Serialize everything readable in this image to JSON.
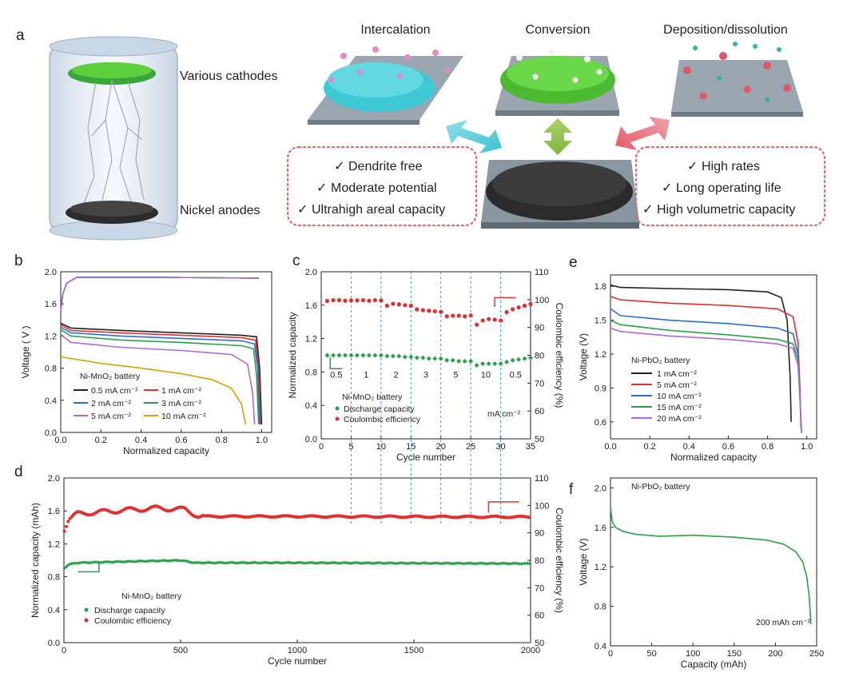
{
  "figure": {
    "panel_a": {
      "letter": "a",
      "cathode_label": "Various cathodes",
      "anode_label": "Nickel anodes",
      "mechanisms": [
        "Intercalation",
        "Conversion",
        "Deposition/dissolution"
      ],
      "left_box": [
        "Dendrite free",
        "Moderate potential",
        "Ultrahigh areal capacity"
      ],
      "right_box": [
        "High rates",
        "Long operating life",
        "High volumetric capacity"
      ],
      "check": "✓",
      "colors": {
        "intercalation": "#3ec8d4",
        "conversion": "#5ccf3c",
        "deposition": "#e0566a",
        "anode": "#2b2b2b",
        "box_border": "#e06a6a"
      }
    },
    "panel_b": {
      "letter": "b"
    },
    "panel_c": {
      "letter": "c"
    },
    "panel_d": {
      "letter": "d"
    },
    "panel_e": {
      "letter": "e"
    },
    "panel_f": {
      "letter": "f"
    }
  },
  "chart_data": [
    {
      "id": "b",
      "type": "line",
      "xlabel": "Normalized capacity",
      "ylabel": "Voltage ( V )",
      "xlim": [
        0,
        1.05
      ],
      "ylim": [
        0,
        2.0
      ],
      "xticks": [
        "0.0",
        "0.2",
        "0.4",
        "0.6",
        "0.8",
        "1.0"
      ],
      "yticks": [
        "0.0",
        "0.4",
        "0.8",
        "1.2",
        "1.6",
        "2.0"
      ],
      "annotation": "Ni-MnO₂ battery",
      "legend": [
        {
          "name": "0.5 mA cm⁻²",
          "color": "#222222"
        },
        {
          "name": "1 mA cm⁻²",
          "color": "#e03030"
        },
        {
          "name": "2 mA cm⁻²",
          "color": "#2a6fd0"
        },
        {
          "name": "3 mA cm⁻²",
          "color": "#2aa04a"
        },
        {
          "name": "5 mA cm⁻²",
          "color": "#b068d8"
        },
        {
          "name": "10 mA cm⁻²",
          "color": "#d8a000"
        }
      ],
      "series": [
        {
          "color": "#222222",
          "charge_v": 1.93,
          "discharge": {
            "x": [
              0,
              0.05,
              0.3,
              0.6,
              0.9,
              0.975,
              0.99,
              1.0
            ],
            "y": [
              1.36,
              1.3,
              1.27,
              1.24,
              1.21,
              1.19,
              0.8,
              0.1
            ]
          }
        },
        {
          "color": "#e03030",
          "charge_v": 1.93,
          "discharge": {
            "x": [
              0,
              0.05,
              0.3,
              0.6,
              0.9,
              0.97,
              0.985,
              0.995
            ],
            "y": [
              1.34,
              1.27,
              1.24,
              1.21,
              1.18,
              1.15,
              0.8,
              0.1
            ]
          }
        },
        {
          "color": "#2a6fd0",
          "charge_v": 1.93,
          "discharge": {
            "x": [
              0,
              0.05,
              0.3,
              0.6,
              0.9,
              0.965,
              0.98,
              0.99
            ],
            "y": [
              1.31,
              1.24,
              1.2,
              1.17,
              1.14,
              1.1,
              0.8,
              0.1
            ]
          }
        },
        {
          "color": "#2aa04a",
          "charge_v": 1.93,
          "discharge": {
            "x": [
              0,
              0.05,
              0.3,
              0.6,
              0.9,
              0.96,
              0.975,
              0.985
            ],
            "y": [
              1.28,
              1.2,
              1.15,
              1.12,
              1.08,
              1.04,
              0.7,
              0.1
            ]
          }
        },
        {
          "color": "#b068d8",
          "charge_v": 1.93,
          "discharge": {
            "x": [
              0,
              0.05,
              0.3,
              0.6,
              0.85,
              0.93,
              0.955,
              0.965
            ],
            "y": [
              1.22,
              1.12,
              1.06,
              1.02,
              0.97,
              0.85,
              0.5,
              0.1
            ]
          }
        },
        {
          "color": "#d8a000",
          "charge_v": null,
          "discharge": {
            "x": [
              0,
              0.2,
              0.4,
              0.6,
              0.75,
              0.85,
              0.9,
              0.92
            ],
            "y": [
              0.94,
              0.86,
              0.8,
              0.73,
              0.66,
              0.55,
              0.35,
              0.1
            ]
          }
        }
      ]
    },
    {
      "id": "c",
      "type": "scatter",
      "xlabel": "Cycle number",
      "ylabel": "Normalized capacity",
      "y2label": "Coulombic efficiency (%)",
      "xlim": [
        0,
        35
      ],
      "ylim": [
        0,
        2.0
      ],
      "y2lim": [
        50,
        110
      ],
      "xticks": [
        "0",
        "5",
        "10",
        "15",
        "20",
        "25",
        "30",
        "35"
      ],
      "yticks": [
        "0.0",
        "0.4",
        "0.8",
        "1.2",
        "1.6",
        "2.0"
      ],
      "y2ticks": [
        "50",
        "60",
        "70",
        "80",
        "90",
        "100",
        "110"
      ],
      "rate_labels": [
        "0.5",
        "1",
        "2",
        "3",
        "5",
        "10",
        "0.5"
      ],
      "unit_label": "mA cm⁻²",
      "annotation": "Ni-MnO₂ battery",
      "legend": [
        {
          "name": "Discharge capacity",
          "color": "#2aa04a"
        },
        {
          "name": "Coulombic efficiency",
          "color": "#e03030"
        }
      ],
      "boundaries": [
        5,
        10,
        15,
        20,
        25,
        30
      ],
      "discharge": [
        1.0,
        1.0,
        1.0,
        1.0,
        1.0,
        1.0,
        1.0,
        1.0,
        1.0,
        1.0,
        0.99,
        0.99,
        0.99,
        0.98,
        0.98,
        0.97,
        0.97,
        0.96,
        0.96,
        0.96,
        0.94,
        0.94,
        0.93,
        0.93,
        0.93,
        0.88,
        0.9,
        0.9,
        0.9,
        0.9,
        0.92,
        0.94,
        0.95,
        0.96,
        0.97
      ],
      "efficiency": [
        99.5,
        99.8,
        99.8,
        99.6,
        99.7,
        99.7,
        99.8,
        99.6,
        99.8,
        99.7,
        97.8,
        98.5,
        98.3,
        98.0,
        97.8,
        96.5,
        96.2,
        96.0,
        95.8,
        95.6,
        94.0,
        94.2,
        94.2,
        94.0,
        94.3,
        91.0,
        92.5,
        93.0,
        92.8,
        92.5,
        95.5,
        96.5,
        97.2,
        97.8,
        98.4
      ]
    },
    {
      "id": "d",
      "type": "scatter",
      "xlabel": "Cycle number",
      "ylabel": "Normalized capacity (mAh)",
      "y2label": "Coulombic efficiency (%)",
      "xlim": [
        0,
        2000
      ],
      "ylim": [
        0,
        2.0
      ],
      "y2lim": [
        50,
        110
      ],
      "xticks": [
        "0",
        "500",
        "1000",
        "1500",
        "2000"
      ],
      "yticks": [
        "0.0",
        "0.4",
        "0.8",
        "1.2",
        "1.6",
        "2.0"
      ],
      "y2ticks": [
        "50",
        "60",
        "70",
        "80",
        "90",
        "100",
        "110"
      ],
      "annotation": "Ni-MnO₂ battery",
      "legend": [
        {
          "name": "Discharge capacity",
          "color": "#2aa04a"
        },
        {
          "name": "Coulombic efficiency",
          "color": "#e03030"
        }
      ],
      "discharge_profile": {
        "x": [
          0,
          20,
          60,
          200,
          500,
          560,
          1000,
          2000
        ],
        "y": [
          0.9,
          0.95,
          0.97,
          0.98,
          1.0,
          0.97,
          0.97,
          0.96
        ]
      },
      "efficiency_profile": {
        "x": [
          0,
          20,
          60,
          300,
          400,
          520,
          580,
          1000,
          2000
        ],
        "y": [
          91,
          95,
          97,
          98.5,
          99,
          98.5,
          96,
          96,
          95.8
        ]
      }
    },
    {
      "id": "e",
      "type": "line",
      "xlabel": "Normalized capacity",
      "ylabel": "Voltage (V)",
      "xlim": [
        0,
        1.05
      ],
      "ylim": [
        0.45,
        1.9
      ],
      "xticks": [
        "0.0",
        "0.2",
        "0.4",
        "0.6",
        "0.8",
        "1.0"
      ],
      "yticks": [
        "0.6",
        "0.9",
        "1.2",
        "1.5",
        "1.8"
      ],
      "annotation": "Ni-PbO₂ battery",
      "legend": [
        {
          "name": "1 mA cm⁻²",
          "color": "#222222"
        },
        {
          "name": "5 mA cm⁻²",
          "color": "#e03030"
        },
        {
          "name": "10 mA cm⁻²",
          "color": "#2a6fd0"
        },
        {
          "name": "15 mA cm⁻²",
          "color": "#2aa04a"
        },
        {
          "name": "20 mA cm⁻²",
          "color": "#b068d8"
        }
      ],
      "series": [
        {
          "color": "#222222",
          "x": [
            0,
            0.05,
            0.3,
            0.6,
            0.8,
            0.87,
            0.9,
            0.915,
            0.92
          ],
          "y": [
            1.81,
            1.79,
            1.78,
            1.77,
            1.75,
            1.7,
            1.5,
            1.0,
            0.6
          ]
        },
        {
          "color": "#e03030",
          "x": [
            0,
            0.05,
            0.3,
            0.6,
            0.85,
            0.93,
            0.955,
            0.965,
            0.97
          ],
          "y": [
            1.71,
            1.68,
            1.65,
            1.63,
            1.6,
            1.53,
            1.3,
            0.9,
            0.55
          ]
        },
        {
          "color": "#2a6fd0",
          "x": [
            0,
            0.05,
            0.3,
            0.6,
            0.85,
            0.93,
            0.955,
            0.965,
            0.972
          ],
          "y": [
            1.6,
            1.54,
            1.5,
            1.47,
            1.43,
            1.38,
            1.2,
            0.85,
            0.52
          ]
        },
        {
          "color": "#2aa04a",
          "x": [
            0,
            0.05,
            0.3,
            0.6,
            0.85,
            0.93,
            0.955,
            0.965,
            0.973
          ],
          "y": [
            1.5,
            1.46,
            1.41,
            1.37,
            1.33,
            1.29,
            1.15,
            0.8,
            0.5
          ]
        },
        {
          "color": "#b068d8",
          "x": [
            0,
            0.05,
            0.3,
            0.6,
            0.85,
            0.93,
            0.955,
            0.965,
            0.974
          ],
          "y": [
            1.43,
            1.4,
            1.36,
            1.33,
            1.29,
            1.25,
            1.1,
            0.8,
            0.5
          ]
        }
      ]
    },
    {
      "id": "f",
      "type": "line",
      "xlabel": "Capacity (mAh)",
      "ylabel": "Voltage (V)",
      "xlim": [
        0,
        250
      ],
      "ylim": [
        0.4,
        2.1
      ],
      "xticks": [
        "0",
        "50",
        "100",
        "150",
        "200",
        "250"
      ],
      "yticks": [
        "0.4",
        "0.8",
        "1.2",
        "1.6",
        "2.0"
      ],
      "annotation": "Ni-PbO₂ battery",
      "curve_label": "200 mAh cm⁻²",
      "series": [
        {
          "color": "#2aa04a",
          "x": [
            0,
            2,
            6,
            15,
            30,
            60,
            100,
            150,
            190,
            210,
            225,
            233,
            238,
            241,
            243
          ],
          "y": [
            1.8,
            1.66,
            1.6,
            1.56,
            1.53,
            1.51,
            1.52,
            1.5,
            1.47,
            1.43,
            1.35,
            1.25,
            1.1,
            0.9,
            0.62
          ]
        }
      ]
    }
  ]
}
